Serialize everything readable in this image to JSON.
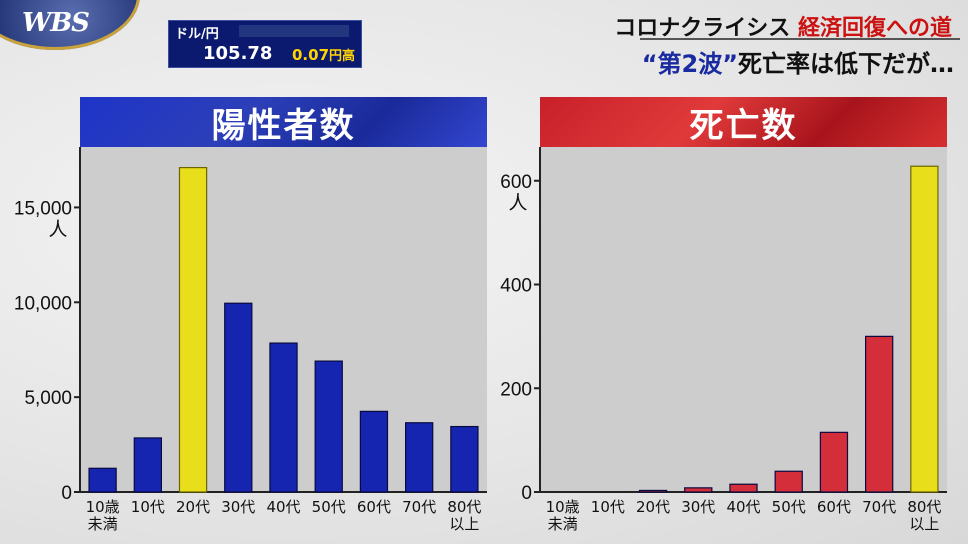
{
  "logo": {
    "text": "WBS"
  },
  "ticker": {
    "pair": "ドル/円",
    "price": "105.78",
    "change": "0.07",
    "change_unit": "円高"
  },
  "headline": {
    "series_prefix": "コロナクライシス",
    "series_suffix": "経済回復への道",
    "sub_quoted": "“第2波”",
    "sub_rest": "死亡率は低下だが…"
  },
  "colors": {
    "blue_bar": "#1525b0",
    "red_bar": "#d42e3a",
    "highlight": "#e8df1a"
  },
  "chart_data": [
    {
      "type": "bar",
      "title": "陽性者数",
      "unit_label": "人",
      "categories": [
        "10歳 未満",
        "10代",
        "20代",
        "30代",
        "40代",
        "50代",
        "60代",
        "70代",
        "80代 以上"
      ],
      "values": [
        1250,
        2850,
        17100,
        9950,
        7850,
        6900,
        4250,
        3650,
        3450
      ],
      "highlight_index": 2,
      "ylim": [
        0,
        17500
      ],
      "yticks": [
        0,
        5000,
        10000,
        15000
      ],
      "ytick_labels": [
        "0",
        "5,000",
        "10,000",
        "15,000"
      ]
    },
    {
      "type": "bar",
      "title": "死亡数",
      "unit_label": "人",
      "categories": [
        "10歳 未満",
        "10代",
        "20代",
        "30代",
        "40代",
        "50代",
        "60代",
        "70代",
        "80代 以上"
      ],
      "values": [
        0,
        0,
        3,
        8,
        15,
        40,
        115,
        300,
        628
      ],
      "highlight_index": 8,
      "ylim": [
        0,
        640
      ],
      "yticks": [
        0,
        200,
        400,
        600
      ],
      "ytick_labels": [
        "0",
        "200",
        "400",
        "600"
      ]
    }
  ]
}
